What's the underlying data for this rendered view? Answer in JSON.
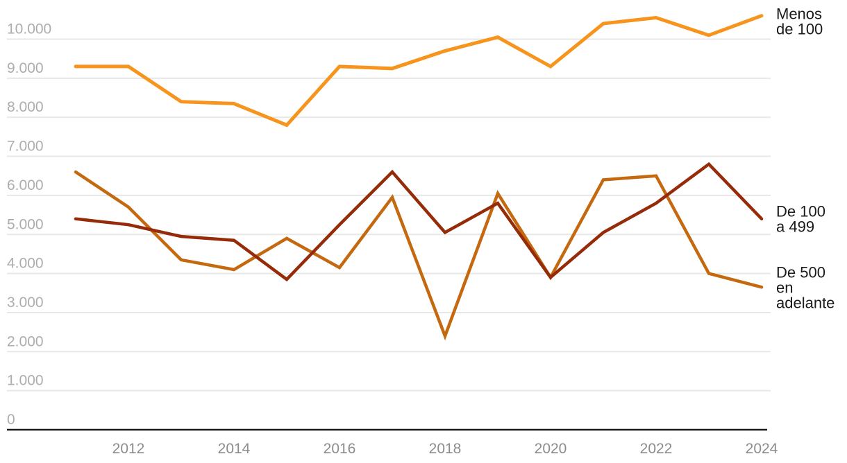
{
  "chart_data": {
    "type": "line",
    "x": [
      2011,
      2012,
      2013,
      2014,
      2015,
      2016,
      2017,
      2018,
      2019,
      2020,
      2021,
      2022,
      2023,
      2024
    ],
    "series": [
      {
        "name": "Menos de 100",
        "label_lines": [
          "Menos",
          "de 100"
        ],
        "color": "#F7941D",
        "values": [
          9300,
          9300,
          8400,
          8350,
          7800,
          9300,
          9250,
          9700,
          10050,
          9300,
          10400,
          10550,
          10100,
          10600
        ]
      },
      {
        "name": "De 100 a 499",
        "label_lines": [
          "De 100",
          "a 499"
        ],
        "color": "#962B09",
        "values": [
          5400,
          5250,
          4950,
          4850,
          3850,
          5250,
          6600,
          5050,
          5800,
          3900,
          5050,
          5800,
          6800,
          5400
        ]
      },
      {
        "name": "De 500 en adelante",
        "label_lines": [
          "De 500",
          "en",
          "adelante"
        ],
        "color": "#C4690F",
        "values": [
          6600,
          5700,
          4350,
          4100,
          4900,
          4150,
          5950,
          2400,
          6050,
          3900,
          6400,
          6500,
          4000,
          3650
        ]
      }
    ],
    "y_ticks": [
      0,
      1000,
      2000,
      3000,
      4000,
      5000,
      6000,
      7000,
      8000,
      9000,
      10000
    ],
    "y_tick_labels": [
      "0",
      "1.000",
      "2.000",
      "3.000",
      "4.000",
      "5.000",
      "6.000",
      "7.000",
      "8.000",
      "9.000",
      "10.000"
    ],
    "x_ticks": [
      2012,
      2014,
      2016,
      2018,
      2020,
      2022,
      2024
    ],
    "x_tick_labels": [
      "2012",
      "2014",
      "2016",
      "2018",
      "2020",
      "2022",
      "2024"
    ],
    "ylim": [
      0,
      10650
    ],
    "grid": true,
    "legend_position": "right-end-of-lines",
    "title": "",
    "xlabel": "",
    "ylabel": "",
    "style": {
      "background": "#FFFFFF",
      "gridline_color": "#E7E7E7",
      "axis_line_color": "#1A1A1A",
      "y_tick_color": "#ADADAD",
      "x_tick_color": "#8C8C8C",
      "series_label_color": "#1A1A1A"
    }
  }
}
